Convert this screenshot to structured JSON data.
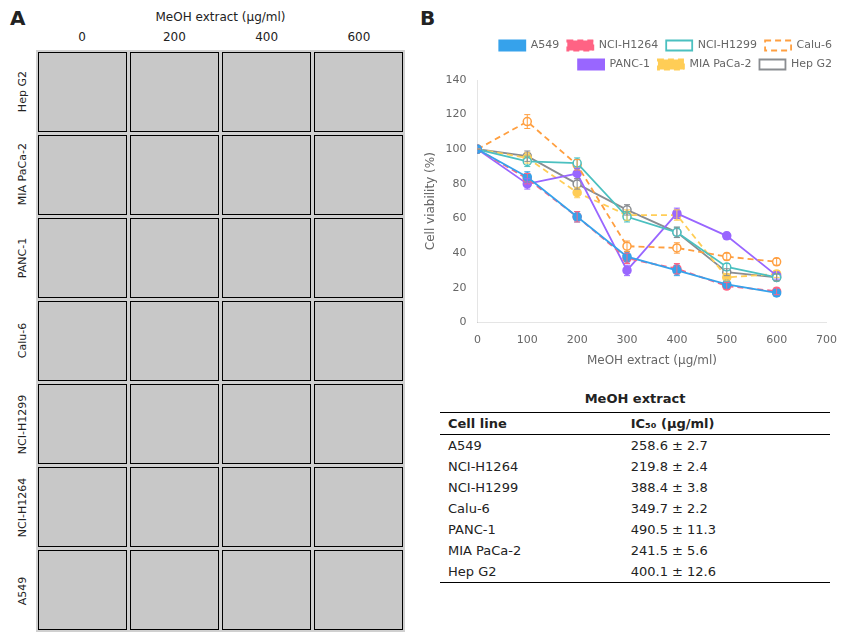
{
  "chart_data": [
    {
      "type": "image_grid",
      "panel": "A",
      "title": "MeOH extract (μg/ml)",
      "categories": [
        "0",
        "200",
        "400",
        "600"
      ],
      "row_labels": [
        "A549",
        "NCI-H1264",
        "NCI-H1299",
        "Calu-6",
        "PANC-1",
        "MIA PaCa-2",
        "Hep G2"
      ]
    },
    {
      "type": "line",
      "panel": "B",
      "xlabel": "MeOH extract (μg/ml)",
      "ylabel": "Cell viability (%)",
      "x": [
        0,
        100,
        200,
        300,
        400,
        500,
        600
      ],
      "series": [
        {
          "name": "A549",
          "values": [
            100,
            84,
            61,
            38,
            30,
            22,
            17
          ],
          "errors": [
            0,
            3,
            3,
            3,
            3,
            2,
            2
          ],
          "line_style": "solid",
          "marker": "circle"
        },
        {
          "name": "NCI-H1264",
          "values": [
            100,
            83,
            61,
            37,
            31,
            21,
            18
          ],
          "errors": [
            0,
            3,
            3,
            3,
            3,
            2,
            2
          ],
          "line_style": "dashed",
          "marker": "circle"
        },
        {
          "name": "NCI-H1299",
          "values": [
            100,
            93,
            92,
            61,
            52,
            32,
            26
          ],
          "errors": [
            0,
            3,
            3,
            3,
            3,
            2,
            2
          ],
          "line_style": "solid",
          "marker": "open circle"
        },
        {
          "name": "Calu-6",
          "values": [
            100,
            116,
            91,
            44,
            43,
            38,
            35
          ],
          "errors": [
            0,
            4,
            3,
            3,
            3,
            2,
            2
          ],
          "line_style": "dashed",
          "marker": "open circle"
        },
        {
          "name": "PANC-1",
          "values": [
            100,
            80,
            86,
            30,
            63,
            50,
            27
          ],
          "errors": [
            0,
            3,
            3,
            3,
            3,
            2,
            2
          ],
          "line_style": "solid",
          "marker": "circle"
        },
        {
          "name": "MIA PaCa-2",
          "values": [
            100,
            95,
            75,
            62,
            62,
            26,
            28
          ],
          "errors": [
            0,
            3,
            3,
            3,
            3,
            2,
            2
          ],
          "line_style": "dashed",
          "marker": "circle"
        },
        {
          "name": "Hep G2",
          "values": [
            100,
            96,
            80,
            65,
            52,
            29,
            26
          ],
          "errors": [
            0,
            3,
            3,
            3,
            3,
            2,
            2
          ],
          "line_style": "solid",
          "marker": "open circle"
        }
      ],
      "xlim": [
        0,
        700
      ],
      "ylim": [
        0,
        140
      ],
      "xticks": [
        0,
        100,
        200,
        300,
        400,
        500,
        600,
        700
      ],
      "yticks": [
        0,
        20,
        40,
        60,
        80,
        100,
        120,
        140
      ],
      "grid": false,
      "legend": "upper right"
    },
    {
      "type": "table",
      "title": "MeOH extract",
      "headers": [
        "Cell line",
        "IC₅₀ (μg/ml)"
      ],
      "rows": [
        [
          "A549",
          "258.6 ± 2.7"
        ],
        [
          "NCI-H1264",
          "219.8 ± 2.4"
        ],
        [
          "NCI-H1299",
          "388.4 ± 3.8"
        ],
        [
          "Calu-6",
          "349.7 ± 2.2"
        ],
        [
          "PANC-1",
          "490.5 ± 11.3"
        ],
        [
          "MIA PaCa-2",
          "241.5 ± 5.6"
        ],
        [
          "Hep G2",
          "400.1 ± 12.6"
        ]
      ]
    }
  ]
}
